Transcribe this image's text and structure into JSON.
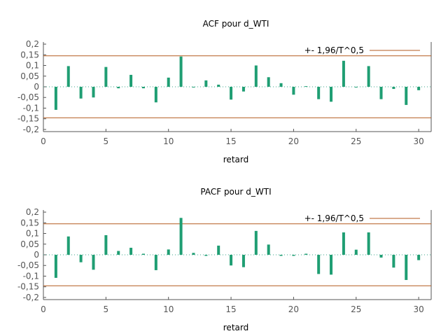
{
  "chart_data": [
    {
      "type": "bar",
      "title": "ACF pour d_WTI",
      "xlabel": "retard",
      "ylabel": "",
      "xlim": [
        0,
        31
      ],
      "ylim": [
        -0.21,
        0.21
      ],
      "x_ticks": [
        0,
        5,
        10,
        15,
        20,
        25,
        30
      ],
      "x_tick_labels": [
        "0",
        "5",
        "10",
        "15",
        "20",
        "25",
        "30"
      ],
      "y_ticks": [
        0.2,
        0.15,
        0.1,
        0.05,
        0,
        -0.05,
        -0.1,
        -0.15,
        -0.2
      ],
      "y_tick_labels": [
        "0,2",
        "0,15",
        "0,1",
        "0,05",
        "0",
        "-0,05",
        "-0,1",
        "-0,15",
        "-0,2"
      ],
      "band": 0.145,
      "legend_label": "+- 1,96/T^0,5",
      "legend_position": "top-right",
      "bar_color": "#1f9e73",
      "band_color": "#b35a1f",
      "zero_line_color": "#3aa58a",
      "x": [
        1,
        2,
        3,
        4,
        5,
        6,
        7,
        8,
        9,
        10,
        11,
        12,
        13,
        14,
        15,
        16,
        17,
        18,
        19,
        20,
        21,
        22,
        23,
        24,
        25,
        26,
        27,
        28,
        29,
        30
      ],
      "values": [
        -0.108,
        0.097,
        -0.055,
        -0.05,
        0.093,
        -0.007,
        0.056,
        -0.007,
        -0.073,
        0.043,
        0.142,
        -0.002,
        0.03,
        0.01,
        -0.06,
        -0.022,
        0.1,
        0.045,
        0.017,
        -0.037,
        0.003,
        -0.058,
        -0.07,
        0.122,
        -0.002,
        0.097,
        -0.058,
        -0.01,
        -0.085,
        -0.016
      ]
    },
    {
      "type": "bar",
      "title": "PACF pour d_WTI",
      "xlabel": "retard",
      "ylabel": "",
      "xlim": [
        0,
        31
      ],
      "ylim": [
        -0.21,
        0.21
      ],
      "x_ticks": [
        0,
        5,
        10,
        15,
        20,
        25,
        30
      ],
      "x_tick_labels": [
        "0",
        "5",
        "10",
        "15",
        "20",
        "25",
        "30"
      ],
      "y_ticks": [
        0.2,
        0.15,
        0.1,
        0.05,
        0,
        -0.05,
        -0.1,
        -0.15,
        -0.2
      ],
      "y_tick_labels": [
        "0,2",
        "0,15",
        "0,1",
        "0,05",
        "0",
        "-0,05",
        "-0,1",
        "-0,15",
        "-0,2"
      ],
      "band": 0.145,
      "legend_label": "+- 1,96/T^0,5",
      "legend_position": "top-right",
      "bar_color": "#1f9e73",
      "band_color": "#b35a1f",
      "zero_line_color": "#3aa58a",
      "x": [
        1,
        2,
        3,
        4,
        5,
        6,
        7,
        8,
        9,
        10,
        11,
        12,
        13,
        14,
        15,
        16,
        17,
        18,
        19,
        20,
        21,
        22,
        23,
        24,
        25,
        26,
        27,
        28,
        29,
        30
      ],
      "values": [
        -0.108,
        0.086,
        -0.035,
        -0.07,
        0.092,
        0.018,
        0.033,
        0.005,
        -0.072,
        0.025,
        0.173,
        0.009,
        -0.005,
        0.043,
        -0.05,
        -0.058,
        0.112,
        0.048,
        -0.005,
        -0.005,
        0.005,
        -0.09,
        -0.093,
        0.105,
        0.024,
        0.105,
        -0.013,
        -0.06,
        -0.118,
        -0.025
      ]
    }
  ]
}
